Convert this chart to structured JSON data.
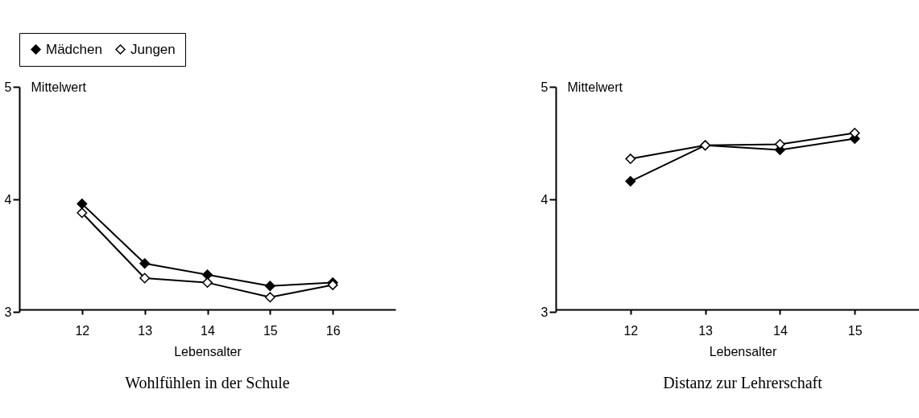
{
  "chart_data": [
    {
      "type": "line",
      "title": "Wohlfühlen in der Schule",
      "xlabel": "Lebensalter",
      "ylabel": "Mittelwert",
      "x": [
        12,
        13,
        14,
        15,
        16
      ],
      "xlim": [
        11,
        17
      ],
      "xticks": [
        12,
        13,
        14,
        15,
        16
      ],
      "ylim": [
        3,
        5
      ],
      "yticks": [
        3,
        4,
        5
      ],
      "marker": "diamond",
      "legend": "top",
      "grid": false,
      "series": [
        {
          "name": "Mädchen",
          "color": "#000000",
          "values": [
            3.96,
            3.43,
            3.33,
            3.23,
            3.26
          ]
        },
        {
          "name": "Jungen",
          "color": "#ffffff",
          "values": [
            3.88,
            3.3,
            3.26,
            3.13,
            3.24
          ]
        }
      ]
    },
    {
      "type": "line",
      "title": "Distanz zur Lehrerschaft",
      "xlabel": "Lebensalter",
      "ylabel": "Mittelwert",
      "x": [
        12,
        13,
        14,
        15
      ],
      "xlim": [
        11,
        16
      ],
      "xticks": [
        12,
        13,
        14,
        15
      ],
      "ylim": [
        3,
        5
      ],
      "yticks": [
        3,
        4,
        5
      ],
      "marker": "diamond",
      "legend": "top",
      "grid": false,
      "series": [
        {
          "name": "Mädchen",
          "color": "#000000",
          "values": [
            4.16,
            4.48,
            4.44,
            4.54
          ]
        },
        {
          "name": "Jungen",
          "color": "#ffffff",
          "values": [
            4.36,
            4.48,
            4.49,
            4.59
          ]
        }
      ]
    }
  ]
}
